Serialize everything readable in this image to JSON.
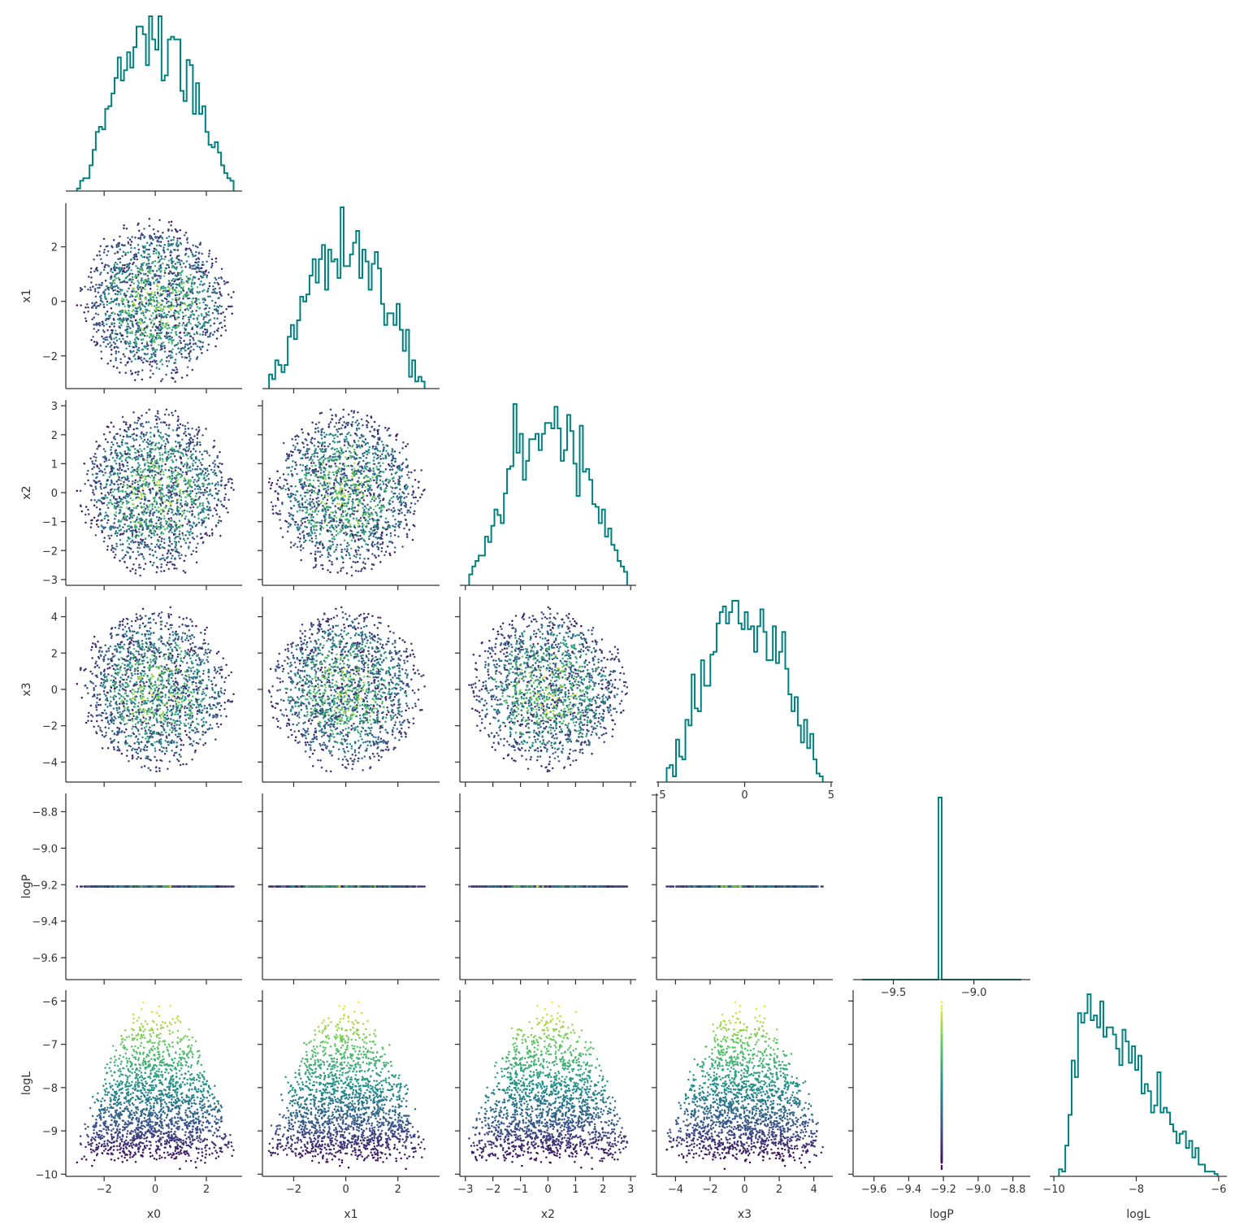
{
  "chart_data": {
    "type": "scatter",
    "title": "",
    "layout": "corner-pairplot",
    "variables": [
      "x0",
      "x1",
      "x2",
      "x3",
      "logP",
      "logL"
    ],
    "diagonal": "step-histogram",
    "histogram_color": "#008080",
    "colormap": [
      "#440154",
      "#3b528b",
      "#21918c",
      "#5ec962",
      "#fde725"
    ],
    "color_by": "logL",
    "n_samples": 1800,
    "axes": {
      "x0": {
        "range": [
          -3.5,
          3.4
        ],
        "ticks": [
          -2,
          0,
          2
        ],
        "tick_labels": [
          "−2",
          "0",
          "2"
        ]
      },
      "x1": {
        "range": [
          -3.2,
          3.6
        ],
        "ticks": [
          -2,
          0,
          2
        ],
        "tick_labels": [
          "−2",
          "0",
          "2"
        ]
      },
      "x2": {
        "range": [
          -3.2,
          3.2
        ],
        "ticks": [
          -3,
          -2,
          -1,
          0,
          1,
          2,
          3
        ],
        "tick_labels": [
          "−3",
          "−2",
          "−1",
          "0",
          "1",
          "2",
          "3"
        ]
      },
      "x3": {
        "range": [
          -5.1,
          5.1
        ],
        "ticks": [
          -4,
          -2,
          0,
          2,
          4
        ],
        "tick_labels": [
          "−4",
          "−2",
          "0",
          "2",
          "4"
        ]
      },
      "logP": {
        "range": [
          -9.72,
          -8.7
        ],
        "ticks": [
          -9.6,
          -9.4,
          -9.2,
          -9.0,
          -8.8
        ],
        "tick_labels": [
          "−9.6",
          "−9.4",
          "−9.2",
          "−9.0",
          "−8.8"
        ]
      },
      "logL": {
        "range": [
          -10.05,
          -5.75
        ],
        "ticks": [
          -10,
          -9,
          -8,
          -7,
          -6
        ],
        "tick_labels": [
          "−10",
          "−9",
          "−8",
          "−7",
          "−6"
        ]
      }
    },
    "diag_x_axes": {
      "x3": {
        "ticks": [
          -5,
          0,
          5
        ],
        "tick_labels": [
          "−5",
          "0",
          "5"
        ]
      },
      "logP": {
        "range": [
          -9.75,
          -8.65
        ],
        "ticks": [
          -9.5,
          -9.0
        ],
        "tick_labels": [
          "−9.5",
          "−9.0"
        ]
      },
      "logL": {
        "range": [
          -10.1,
          -5.8
        ],
        "ticks": [
          -10,
          -8,
          -6
        ],
        "tick_labels": [
          "−10",
          "−8",
          "−6"
        ]
      }
    },
    "logP_constant_value": -9.21,
    "logL_model": {
      "peak": -6.0,
      "slope": 0.1,
      "noise_sd": 0.55,
      "min": -9.9,
      "max": -5.95
    }
  }
}
